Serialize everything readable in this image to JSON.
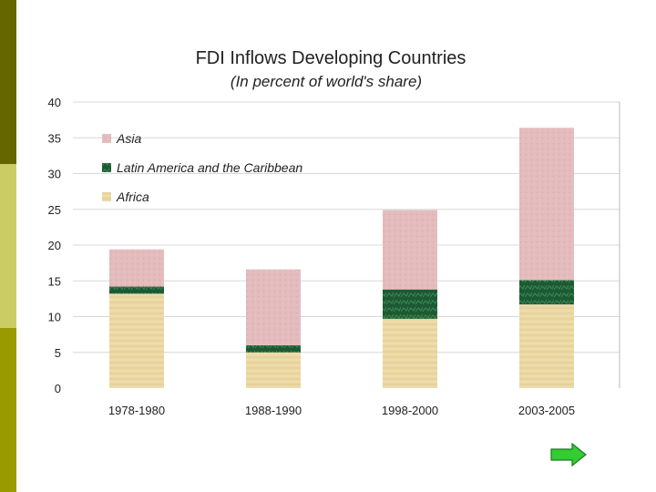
{
  "colors": {
    "accent_dark": "#666600",
    "accent_light": "#cccc66",
    "accent_mid": "#999900",
    "asia": "#e4bcbe",
    "latin_america": "#1d5a34",
    "africa": "#ecd8a4",
    "arrow": "#33cc33"
  },
  "navigation": {
    "next_icon": "right-arrow-icon"
  },
  "chart_data": {
    "type": "bar",
    "stacked": true,
    "title": "FDI Inflows Developing Countries",
    "subtitle": "(In percent of world's share)",
    "xlabel": "",
    "ylabel": "",
    "ylim": [
      0,
      40
    ],
    "yticks": [
      0,
      5,
      10,
      15,
      20,
      25,
      30,
      35,
      40
    ],
    "grid": true,
    "legend_position": "top-left",
    "categories": [
      "1978-1980",
      "1988-1990",
      "1998-2000",
      "2003-2005"
    ],
    "series": [
      {
        "name": "Africa",
        "key": "africa",
        "values": [
          13.2,
          5.0,
          9.7,
          11.7
        ]
      },
      {
        "name": "Latin America and the Caribbean",
        "key": "latin_america",
        "values": [
          1.0,
          1.0,
          4.1,
          3.4
        ]
      },
      {
        "name": "Asia",
        "key": "asia",
        "values": [
          5.2,
          10.6,
          11.1,
          21.3
        ]
      }
    ],
    "legend_order": [
      "Asia",
      "Latin America and the Caribbean",
      "Africa"
    ]
  }
}
